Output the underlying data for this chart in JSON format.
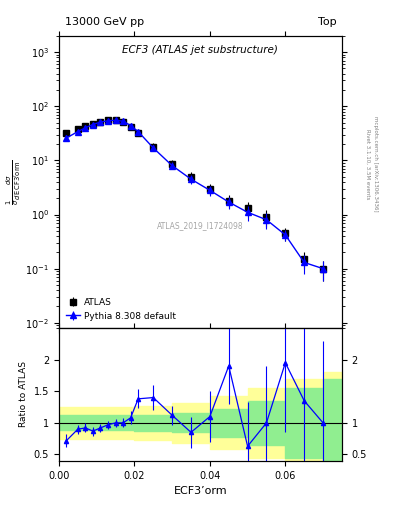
{
  "title_left": "13000 GeV pp",
  "title_right": "Top",
  "panel_title": "ECF3 (ATLAS jet substructure)",
  "xlabel": "ECF3’orm",
  "ylabel_main": "1/σ dσ/d ECF3’orm",
  "ylabel_ratio": "Ratio to ATLAS",
  "watermark": "ATLAS_2019_I1724098",
  "right_label": "Rivet 3.1.10, 3.5M events\nmcplots.cern.ch [arXiv:1306.3436]",
  "atlas_x": [
    0.002,
    0.005,
    0.007,
    0.009,
    0.011,
    0.013,
    0.015,
    0.017,
    0.019,
    0.021,
    0.025,
    0.03,
    0.035,
    0.04,
    0.045,
    0.05,
    0.055,
    0.06,
    0.065,
    0.07
  ],
  "atlas_y": [
    32,
    38,
    43,
    48,
    52,
    55,
    55,
    52,
    42,
    32,
    18,
    8.5,
    5.0,
    3.0,
    1.8,
    1.3,
    0.9,
    0.45,
    0.15,
    0.1
  ],
  "atlas_yerr": [
    4,
    4,
    4,
    4,
    4,
    4,
    4,
    4,
    4,
    4,
    3,
    1.5,
    1.0,
    0.7,
    0.5,
    0.4,
    0.3,
    0.12,
    0.05,
    0.04
  ],
  "pythia_x": [
    0.002,
    0.005,
    0.007,
    0.009,
    0.011,
    0.013,
    0.015,
    0.017,
    0.019,
    0.021,
    0.025,
    0.03,
    0.035,
    0.04,
    0.045,
    0.05,
    0.055,
    0.06,
    0.065,
    0.07
  ],
  "pythia_y": [
    26,
    34,
    40,
    46,
    51,
    54,
    55,
    53,
    44,
    34,
    17,
    8.0,
    4.5,
    2.8,
    1.7,
    1.1,
    0.8,
    0.42,
    0.13,
    0.1
  ],
  "pythia_yerr": [
    3,
    3,
    3,
    3,
    3,
    3,
    3,
    3,
    3,
    3,
    2,
    1.2,
    0.9,
    0.6,
    0.45,
    0.35,
    0.25,
    0.1,
    0.05,
    0.04
  ],
  "ratio_x": [
    0.002,
    0.005,
    0.007,
    0.009,
    0.011,
    0.013,
    0.015,
    0.017,
    0.019,
    0.021,
    0.025,
    0.03,
    0.035,
    0.04,
    0.045,
    0.05,
    0.055,
    0.06,
    0.065,
    0.07
  ],
  "ratio_y": [
    0.72,
    0.9,
    0.92,
    0.87,
    0.92,
    0.97,
    1.0,
    1.0,
    1.08,
    1.38,
    1.4,
    1.12,
    0.85,
    1.1,
    1.9,
    0.63,
    1.0,
    1.95,
    1.35,
    1.0
  ],
  "ratio_yerr": [
    0.1,
    0.07,
    0.07,
    0.07,
    0.06,
    0.06,
    0.06,
    0.07,
    0.1,
    0.15,
    0.2,
    0.15,
    0.25,
    0.4,
    0.6,
    0.7,
    0.9,
    1.1,
    1.2,
    1.3
  ],
  "green_band_x": [
    0.0,
    0.01,
    0.02,
    0.03,
    0.04,
    0.05,
    0.06,
    0.07,
    0.075
  ],
  "green_band_lo": [
    0.88,
    0.88,
    0.87,
    0.85,
    0.78,
    0.65,
    0.45,
    0.3,
    0.3
  ],
  "green_band_hi": [
    1.12,
    1.12,
    1.13,
    1.15,
    1.22,
    1.35,
    1.55,
    1.7,
    1.7
  ],
  "yellow_band_x": [
    0.0,
    0.01,
    0.02,
    0.03,
    0.04,
    0.05,
    0.06,
    0.07,
    0.075
  ],
  "yellow_band_lo": [
    0.75,
    0.75,
    0.73,
    0.68,
    0.58,
    0.45,
    0.3,
    0.2,
    0.2
  ],
  "yellow_band_hi": [
    1.25,
    1.25,
    1.27,
    1.32,
    1.42,
    1.55,
    1.7,
    1.8,
    1.8
  ],
  "ylim_main": [
    0.008,
    2000
  ],
  "ylim_ratio": [
    0.4,
    2.5
  ],
  "xlim": [
    0.0,
    0.075
  ],
  "atlas_color": "black",
  "pythia_color": "blue",
  "green_color": "#90EE90",
  "yellow_color": "#FFFF99",
  "fig_width": 3.93,
  "fig_height": 5.12
}
